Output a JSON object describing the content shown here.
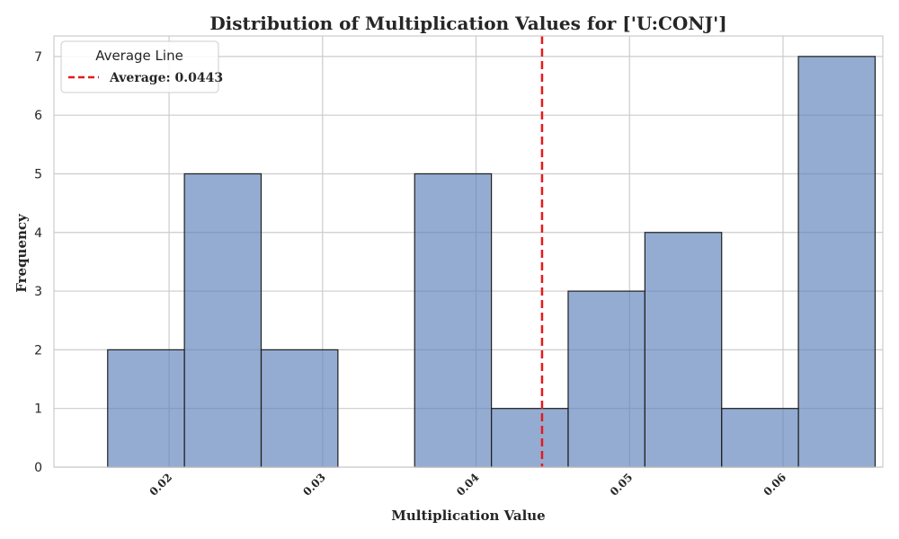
{
  "chart_data": {
    "type": "bar",
    "title": "Distribution of Multiplication Values for ['U:CONJ']",
    "xlabel": "Multiplication Value",
    "ylabel": "Frequency",
    "bins": [
      {
        "start": 0.016,
        "end": 0.021,
        "count": 2
      },
      {
        "start": 0.021,
        "end": 0.026,
        "count": 5
      },
      {
        "start": 0.026,
        "end": 0.031,
        "count": 2
      },
      {
        "start": 0.031,
        "end": 0.036,
        "count": 0
      },
      {
        "start": 0.036,
        "end": 0.041,
        "count": 5
      },
      {
        "start": 0.041,
        "end": 0.046,
        "count": 1
      },
      {
        "start": 0.046,
        "end": 0.051,
        "count": 3
      },
      {
        "start": 0.051,
        "end": 0.056,
        "count": 4
      },
      {
        "start": 0.056,
        "end": 0.061,
        "count": 1
      },
      {
        "start": 0.061,
        "end": 0.066,
        "count": 7
      }
    ],
    "xlim": [
      0.0125,
      0.0665
    ],
    "ylim": [
      0,
      7.35
    ],
    "xticks": [
      0.02,
      0.03,
      0.04,
      0.05,
      0.06
    ],
    "xtick_labels": [
      "0.02",
      "0.03",
      "0.04",
      "0.05",
      "0.06"
    ],
    "yticks": [
      0,
      1,
      2,
      3,
      4,
      5,
      6,
      7
    ],
    "ytick_labels": [
      "0",
      "1",
      "2",
      "3",
      "4",
      "5",
      "6",
      "7"
    ],
    "average": 0.0443,
    "legend": {
      "title": "Average Line",
      "entries": [
        "Average: 0.0443"
      ],
      "position": "top-left"
    },
    "grid": true,
    "colors": {
      "bar_fill": "#5a7fba",
      "bar_edge": "#1f1f1f",
      "average_line": "#e41a1c",
      "grid": "#cccccc",
      "frame": "#cccccc"
    }
  }
}
